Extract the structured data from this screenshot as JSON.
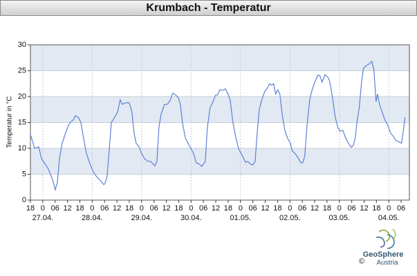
{
  "chart_data": {
    "type": "line",
    "title": "Krumbach - Temperatur",
    "ylabel": "Temperatur in °C",
    "x": [
      0,
      2,
      4,
      5.4,
      7.1,
      8.7,
      10.7,
      12.1,
      13.1,
      14.1,
      15.4,
      17.1,
      18.5,
      19.8,
      20.8,
      21.8,
      23.2,
      24.5,
      25.8,
      27.2,
      28.9,
      30.5,
      32.2,
      33.9,
      35.6,
      36.2,
      37.2,
      38.3,
      39.3,
      40.9,
      42.3,
      43.6,
      44.6,
      46,
      48,
      49.3,
      50.3,
      51.3,
      52.7,
      54,
      55.4,
      57,
      58.4,
      60.4,
      61.4,
      62.4,
      63.4,
      65.1,
      66.4,
      67.8,
      69.1,
      70.5,
      71.8,
      72.8,
      73.8,
      75.2,
      76.5,
      77.9,
      79.2,
      80.5,
      81.9,
      83.2,
      84.9,
      85.9,
      87.2,
      88.6,
      89.9,
      90.9,
      91.9,
      93.3,
      94.6,
      96,
      97,
      98.3,
      99.7,
      101,
      102.3,
      103,
      104.4,
      105.4,
      106.7,
      108.1,
      109.1,
      110.1,
      111.1,
      112.4,
      113.8,
      114.8,
      116.1,
      117.1,
      118.1,
      119.1,
      120.1,
      121.1,
      122.1,
      123.5,
      124.8,
      126.2,
      127.2,
      128.5,
      129.9,
      131.2,
      132.2,
      133.2,
      134.2,
      135.6,
      136.9,
      138.3,
      139.6,
      140.6,
      141.6,
      143,
      144.3,
      145.3,
      146.6,
      148,
      149.3,
      150.3,
      151.7,
      153,
      154.4,
      155.7,
      156.7,
      157.7,
      158.7,
      159.7,
      160.7,
      161.7,
      163.1,
      164.4,
      165.8,
      166.8,
      167.8,
      168.5,
      169.5,
      170.8,
      172.1,
      173.5,
      174.8,
      176.2,
      177.5,
      178.9,
      180.2,
      180.9,
      181.9
    ],
    "series": [
      {
        "name": "Temperatur",
        "color": "#5b80d8",
        "values": [
          12.7,
          10,
          10.3,
          8,
          7,
          6,
          4,
          2,
          3.5,
          8,
          11,
          13,
          14.5,
          15.2,
          15.5,
          16.3,
          16,
          15,
          12,
          9,
          7,
          5.5,
          4.5,
          3.8,
          3,
          3.2,
          4.5,
          10,
          15,
          16,
          17,
          19.4,
          18.5,
          18.8,
          18.8,
          17,
          13,
          11,
          10.3,
          9,
          8,
          7.5,
          7.5,
          6.6,
          7.5,
          14,
          16.5,
          18.5,
          18.5,
          19.2,
          20.7,
          20.3,
          19.8,
          18.5,
          15,
          12,
          11,
          10,
          9,
          7.2,
          7,
          6.5,
          7.5,
          14,
          17.8,
          19,
          20.3,
          20.3,
          21.3,
          21.2,
          21.5,
          20.5,
          19.3,
          15,
          12.2,
          10,
          9,
          8.5,
          7.3,
          7.5,
          7,
          6.8,
          7.5,
          13,
          17.5,
          19.5,
          21,
          21.5,
          22.5,
          22.2,
          22.5,
          20.5,
          21.3,
          20.5,
          17,
          13.5,
          12,
          11,
          9.5,
          9,
          8.2,
          7.3,
          7.2,
          8.5,
          14,
          19.5,
          21.5,
          23,
          24.2,
          24,
          22.8,
          24.2,
          23.8,
          23,
          20,
          16,
          14,
          13.3,
          13.5,
          12,
          11,
          10.2,
          10.5,
          12,
          15.5,
          18,
          22.5,
          25.5,
          26,
          26.3,
          26.8,
          25,
          19,
          20.5,
          18.5,
          17,
          15.5,
          14.5,
          13,
          12.3,
          11.5,
          11.3,
          11,
          13,
          16
        ]
      }
    ],
    "xlim": [
      0,
      184
    ],
    "ylim": [
      0,
      30
    ],
    "yticks": [
      0,
      5,
      10,
      15,
      20,
      25,
      30
    ],
    "xticks": [
      {
        "value": 0,
        "label": "18"
      },
      {
        "value": 6,
        "label": "0"
      },
      {
        "value": 12,
        "label": "06"
      },
      {
        "value": 18,
        "label": "12"
      },
      {
        "value": 24,
        "label": "18"
      },
      {
        "value": 30,
        "label": "0"
      },
      {
        "value": 36,
        "label": "06"
      },
      {
        "value": 42,
        "label": "12"
      },
      {
        "value": 48,
        "label": "18"
      },
      {
        "value": 54,
        "label": "0"
      },
      {
        "value": 60,
        "label": "06"
      },
      {
        "value": 66,
        "label": "12"
      },
      {
        "value": 72,
        "label": "18"
      },
      {
        "value": 78,
        "label": "0"
      },
      {
        "value": 84,
        "label": "06"
      },
      {
        "value": 90,
        "label": "12"
      },
      {
        "value": 96,
        "label": "18"
      },
      {
        "value": 102,
        "label": "0"
      },
      {
        "value": 108,
        "label": "06"
      },
      {
        "value": 114,
        "label": "12"
      },
      {
        "value": 120,
        "label": "18"
      },
      {
        "value": 126,
        "label": "0"
      },
      {
        "value": 132,
        "label": "06"
      },
      {
        "value": 138,
        "label": "12"
      },
      {
        "value": 144,
        "label": "18"
      },
      {
        "value": 150,
        "label": "0"
      },
      {
        "value": 156,
        "label": "06"
      },
      {
        "value": 162,
        "label": "12"
      },
      {
        "value": 168,
        "label": "18"
      },
      {
        "value": 174,
        "label": "0"
      },
      {
        "value": 180,
        "label": "06"
      }
    ],
    "date_ticks": [
      {
        "value": 6,
        "label": "27.04."
      },
      {
        "value": 30,
        "label": "28.04."
      },
      {
        "value": 54,
        "label": "29.04."
      },
      {
        "value": 78,
        "label": "30.04."
      },
      {
        "value": 102,
        "label": "01.05."
      },
      {
        "value": 126,
        "label": "02.05."
      },
      {
        "value": 150,
        "label": "03.05."
      },
      {
        "value": 174,
        "label": "04.05."
      }
    ],
    "grid": true,
    "band_color": "#e3e9f2"
  },
  "logo": {
    "name": "GeoSphere",
    "sub": "Austria",
    "copyright": "©"
  }
}
